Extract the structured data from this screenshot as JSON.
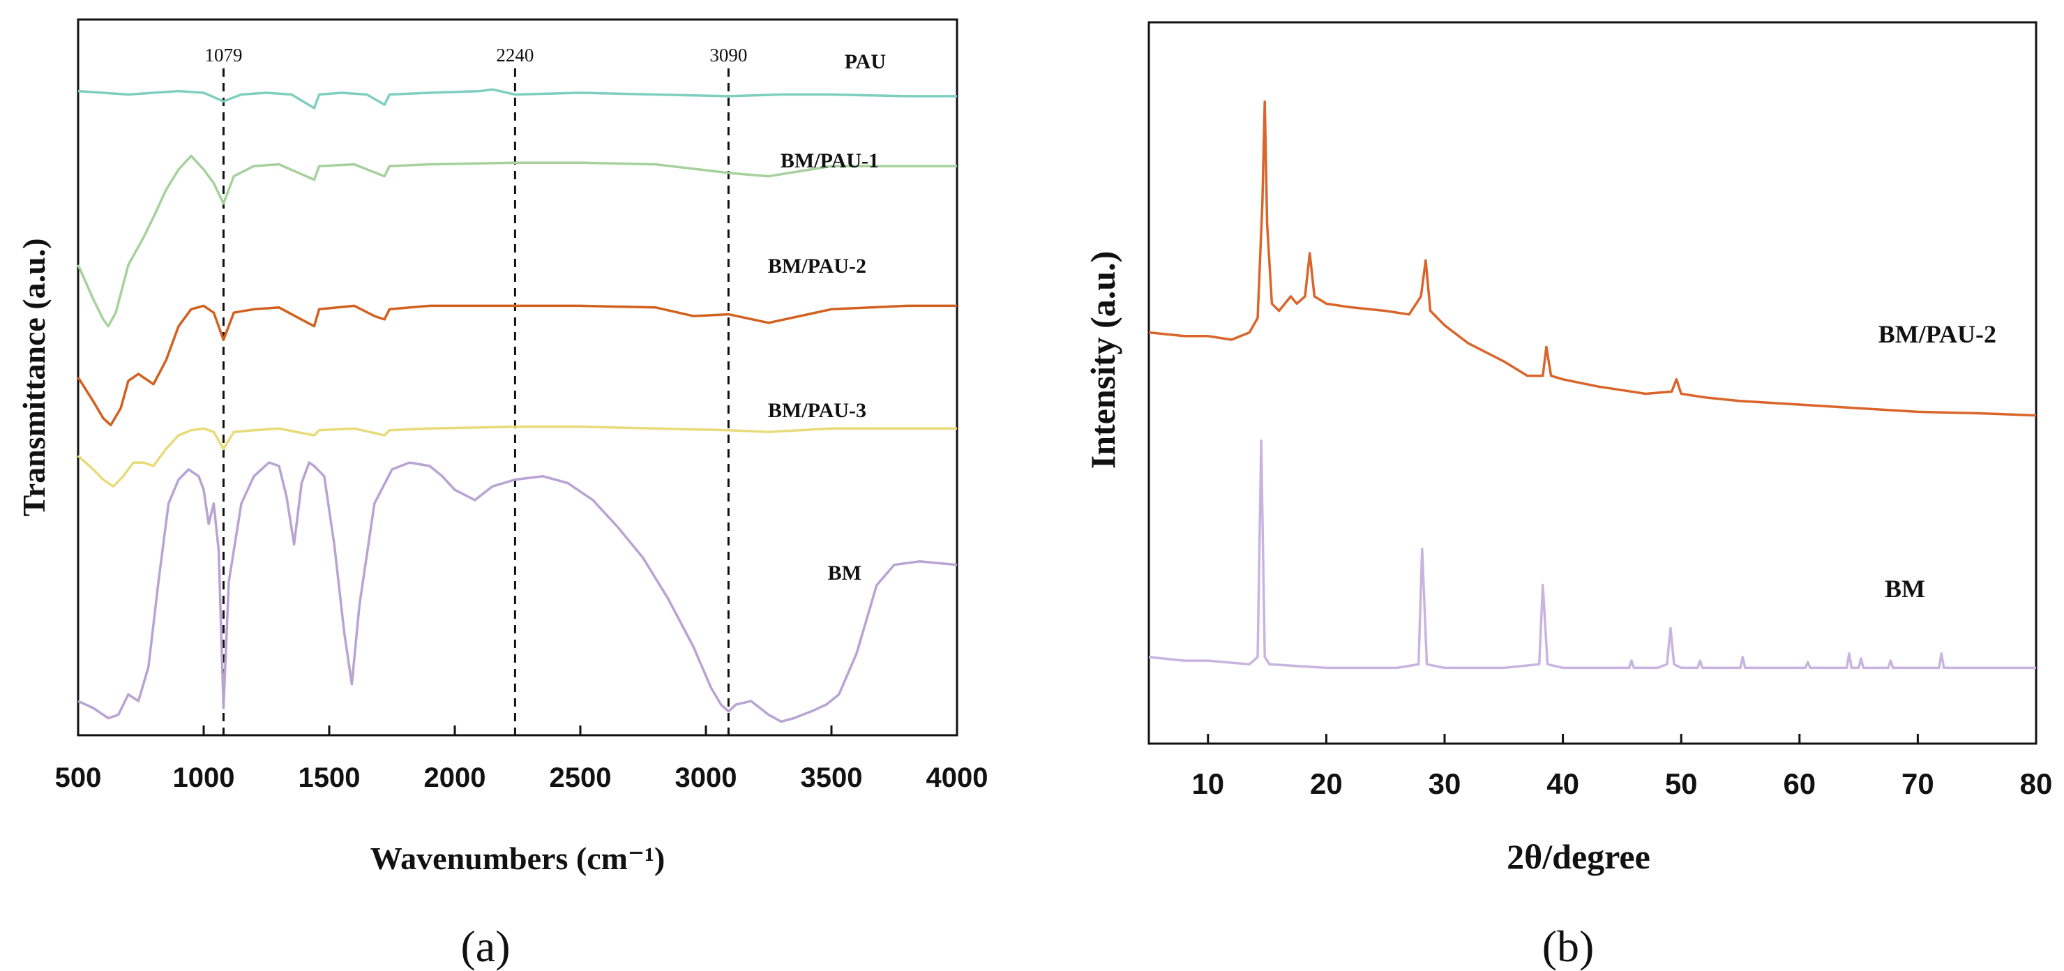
{
  "chart_data": [
    {
      "panel": "(a)",
      "type": "line",
      "title": "",
      "xlabel": "Wavenumbers (cm⁻¹)",
      "ylabel": "Transmittance (a.u.)",
      "xlim": [
        500,
        4000
      ],
      "ylim": [
        0,
        21
      ],
      "xticks": [
        "500",
        "1000",
        "1500",
        "2000",
        "2500",
        "3000",
        "3500",
        "4000"
      ],
      "xtick_values": [
        500,
        1000,
        1500,
        2000,
        2500,
        3000,
        3500,
        4000
      ],
      "grid": false,
      "markers": [
        {
          "x": 1079,
          "label": "1079"
        },
        {
          "x": 2240,
          "label": "2240"
        },
        {
          "x": 3090,
          "label": "3090"
        }
      ],
      "series": [
        {
          "name": "PAU",
          "color": "#7ecfc0",
          "x": [
            500,
            700,
            900,
            1000,
            1079,
            1150,
            1250,
            1350,
            1440,
            1460,
            1550,
            1650,
            1720,
            1740,
            1900,
            2100,
            2150,
            2240,
            2500,
            2800,
            3090,
            3300,
            3500,
            3800,
            4000
          ],
          "y": [
            18.9,
            18.8,
            18.9,
            18.85,
            18.6,
            18.8,
            18.85,
            18.8,
            18.4,
            18.8,
            18.85,
            18.8,
            18.5,
            18.8,
            18.85,
            18.9,
            18.95,
            18.8,
            18.85,
            18.8,
            18.75,
            18.8,
            18.8,
            18.75,
            18.75
          ]
        },
        {
          "name": "BM/PAU-1",
          "color": "#a6d19c",
          "x": [
            500,
            560,
            600,
            620,
            650,
            700,
            760,
            800,
            850,
            900,
            950,
            1000,
            1040,
            1079,
            1120,
            1200,
            1300,
            1440,
            1460,
            1600,
            1720,
            1740,
            1900,
            2240,
            2500,
            2800,
            3090,
            3250,
            3500,
            3800,
            4000
          ],
          "y": [
            13.8,
            12.8,
            12.2,
            12.0,
            12.4,
            13.8,
            14.6,
            15.2,
            16.0,
            16.6,
            17.0,
            16.6,
            16.2,
            15.6,
            16.4,
            16.7,
            16.75,
            16.3,
            16.7,
            16.75,
            16.4,
            16.7,
            16.75,
            16.8,
            16.8,
            16.75,
            16.5,
            16.4,
            16.7,
            16.7,
            16.7
          ]
        },
        {
          "name": "BM/PAU-2",
          "color": "#d2601f",
          "x": [
            500,
            560,
            600,
            630,
            670,
            700,
            740,
            800,
            850,
            900,
            950,
            1000,
            1040,
            1079,
            1120,
            1200,
            1300,
            1440,
            1460,
            1600,
            1680,
            1720,
            1740,
            1900,
            2240,
            2500,
            2800,
            2950,
            3090,
            3250,
            3500,
            3800,
            4000
          ],
          "y": [
            10.5,
            9.8,
            9.3,
            9.1,
            9.6,
            10.4,
            10.6,
            10.3,
            11.0,
            12.0,
            12.5,
            12.6,
            12.4,
            11.6,
            12.4,
            12.5,
            12.55,
            12.0,
            12.5,
            12.6,
            12.3,
            12.2,
            12.5,
            12.6,
            12.6,
            12.6,
            12.55,
            12.3,
            12.35,
            12.1,
            12.5,
            12.6,
            12.6
          ]
        },
        {
          "name": "BM/PAU-3",
          "color": "#e8db7a",
          "x": [
            500,
            560,
            600,
            640,
            680,
            720,
            760,
            800,
            850,
            900,
            950,
            1000,
            1040,
            1079,
            1120,
            1200,
            1300,
            1440,
            1460,
            1600,
            1720,
            1740,
            1900,
            2240,
            2500,
            2800,
            3090,
            3250,
            3500,
            3800,
            4000
          ],
          "y": [
            8.2,
            7.8,
            7.5,
            7.3,
            7.6,
            8.0,
            8.0,
            7.9,
            8.4,
            8.8,
            8.95,
            9.0,
            8.9,
            8.4,
            8.9,
            8.95,
            9.0,
            8.8,
            8.95,
            9.0,
            8.8,
            8.95,
            9.0,
            9.05,
            9.05,
            9.0,
            8.95,
            8.9,
            9.0,
            9.0,
            9.0
          ]
        },
        {
          "name": "BM",
          "color": "#b9a3d3",
          "x": [
            500,
            560,
            620,
            660,
            700,
            740,
            780,
            820,
            860,
            900,
            940,
            980,
            1000,
            1020,
            1040,
            1060,
            1079,
            1100,
            1150,
            1200,
            1260,
            1300,
            1330,
            1360,
            1390,
            1420,
            1440,
            1480,
            1520,
            1560,
            1590,
            1620,
            1680,
            1750,
            1820,
            1900,
            1950,
            2000,
            2080,
            2150,
            2240,
            2350,
            2450,
            2550,
            2650,
            2750,
            2850,
            2950,
            3020,
            3060,
            3090,
            3120,
            3180,
            3250,
            3300,
            3350,
            3420,
            3480,
            3530,
            3600,
            3680,
            3750,
            3850,
            4000
          ],
          "y": [
            1.0,
            0.8,
            0.5,
            0.6,
            1.2,
            1.0,
            2.0,
            4.5,
            6.8,
            7.5,
            7.8,
            7.6,
            7.2,
            6.2,
            6.8,
            5.4,
            0.8,
            4.5,
            6.8,
            7.6,
            8.0,
            7.9,
            7.0,
            5.6,
            7.4,
            8.0,
            7.9,
            7.6,
            5.6,
            3.0,
            1.5,
            3.8,
            6.8,
            7.8,
            8.0,
            7.9,
            7.6,
            7.2,
            6.9,
            7.3,
            7.5,
            7.6,
            7.4,
            6.9,
            6.1,
            5.2,
            4.0,
            2.6,
            1.4,
            0.9,
            0.7,
            0.9,
            1.0,
            0.6,
            0.4,
            0.5,
            0.7,
            0.9,
            1.2,
            2.4,
            4.4,
            5.0,
            5.1,
            5.0
          ]
        }
      ]
    },
    {
      "panel": "(b)",
      "type": "line",
      "title": "",
      "xlabel": "2θ/degree",
      "ylabel": "Intensity (a.u.)",
      "xlim": [
        5,
        80
      ],
      "ylim": [
        0,
        100
      ],
      "xticks": [
        "10",
        "20",
        "30",
        "40",
        "50",
        "60",
        "70",
        "80"
      ],
      "xtick_values": [
        10,
        20,
        30,
        40,
        50,
        60,
        70,
        80
      ],
      "grid": false,
      "series": [
        {
          "name": "BM/PAU-2",
          "color": "#d9652a",
          "x": [
            5,
            8,
            10,
            12,
            13.5,
            14.2,
            14.6,
            14.8,
            15.0,
            15.4,
            16,
            17,
            17.5,
            18.2,
            18.6,
            19.0,
            20,
            22,
            25,
            27,
            28.0,
            28.4,
            28.8,
            30,
            32,
            35,
            37,
            38.3,
            38.6,
            39.0,
            40,
            43,
            45,
            47,
            49.2,
            49.6,
            50,
            52,
            55,
            60,
            65,
            70,
            75,
            80
          ],
          "y": [
            57,
            56.5,
            56.5,
            56,
            57,
            59,
            75,
            89,
            72,
            61,
            60,
            62,
            61,
            62,
            68,
            62,
            61,
            60.5,
            60,
            59.5,
            62,
            67,
            60,
            58,
            55.5,
            53,
            51,
            51,
            55,
            51,
            50.5,
            49.5,
            49,
            48.5,
            48.8,
            50.5,
            48.5,
            48,
            47.5,
            47,
            46.5,
            46,
            45.8,
            45.5
          ]
        },
        {
          "name": "BM",
          "color": "#c9b4e0",
          "x": [
            5,
            8,
            10,
            13.5,
            14.2,
            14.5,
            14.8,
            15.2,
            20,
            26,
            27.8,
            28.1,
            28.5,
            30,
            35,
            38.0,
            38.3,
            38.7,
            40,
            45.6,
            45.8,
            46.0,
            48,
            48.8,
            49.1,
            49.4,
            50,
            51.4,
            51.6,
            51.8,
            55.0,
            55.2,
            55.4,
            60.5,
            60.7,
            60.9,
            64,
            64.2,
            64.4,
            65.0,
            65.2,
            65.4,
            67.5,
            67.7,
            67.9,
            71.8,
            72.0,
            72.2,
            75,
            80
          ],
          "y": [
            12,
            11.5,
            11.5,
            11,
            12,
            42,
            12,
            11,
            10.5,
            10.5,
            11,
            27,
            11,
            10.5,
            10.5,
            11,
            22,
            11,
            10.5,
            10.5,
            11.5,
            10.5,
            10.5,
            11,
            16,
            11,
            10.5,
            10.5,
            11.5,
            10.5,
            10.5,
            12,
            10.5,
            10.5,
            11.3,
            10.5,
            10.5,
            12.5,
            10.5,
            10.5,
            11.8,
            10.5,
            10.5,
            11.5,
            10.5,
            10.5,
            12.5,
            10.5,
            10.5,
            10.5
          ]
        }
      ]
    }
  ],
  "panel_a": {
    "xlabel": "Wavenumbers (cm⁻¹)",
    "ylabel": "Transmittance (a.u.)",
    "caption": "(a)",
    "series_labels": [
      "PAU",
      "BM/PAU-1",
      "BM/PAU-2",
      "BM/PAU-3",
      "BM"
    ],
    "marker_labels": [
      "1079",
      "2240",
      "3090"
    ]
  },
  "panel_b": {
    "xlabel": "2θ/degree",
    "ylabel": "Intensity (a.u.)",
    "caption": "(b)",
    "series_labels": [
      "BM/PAU-2",
      "BM"
    ]
  }
}
